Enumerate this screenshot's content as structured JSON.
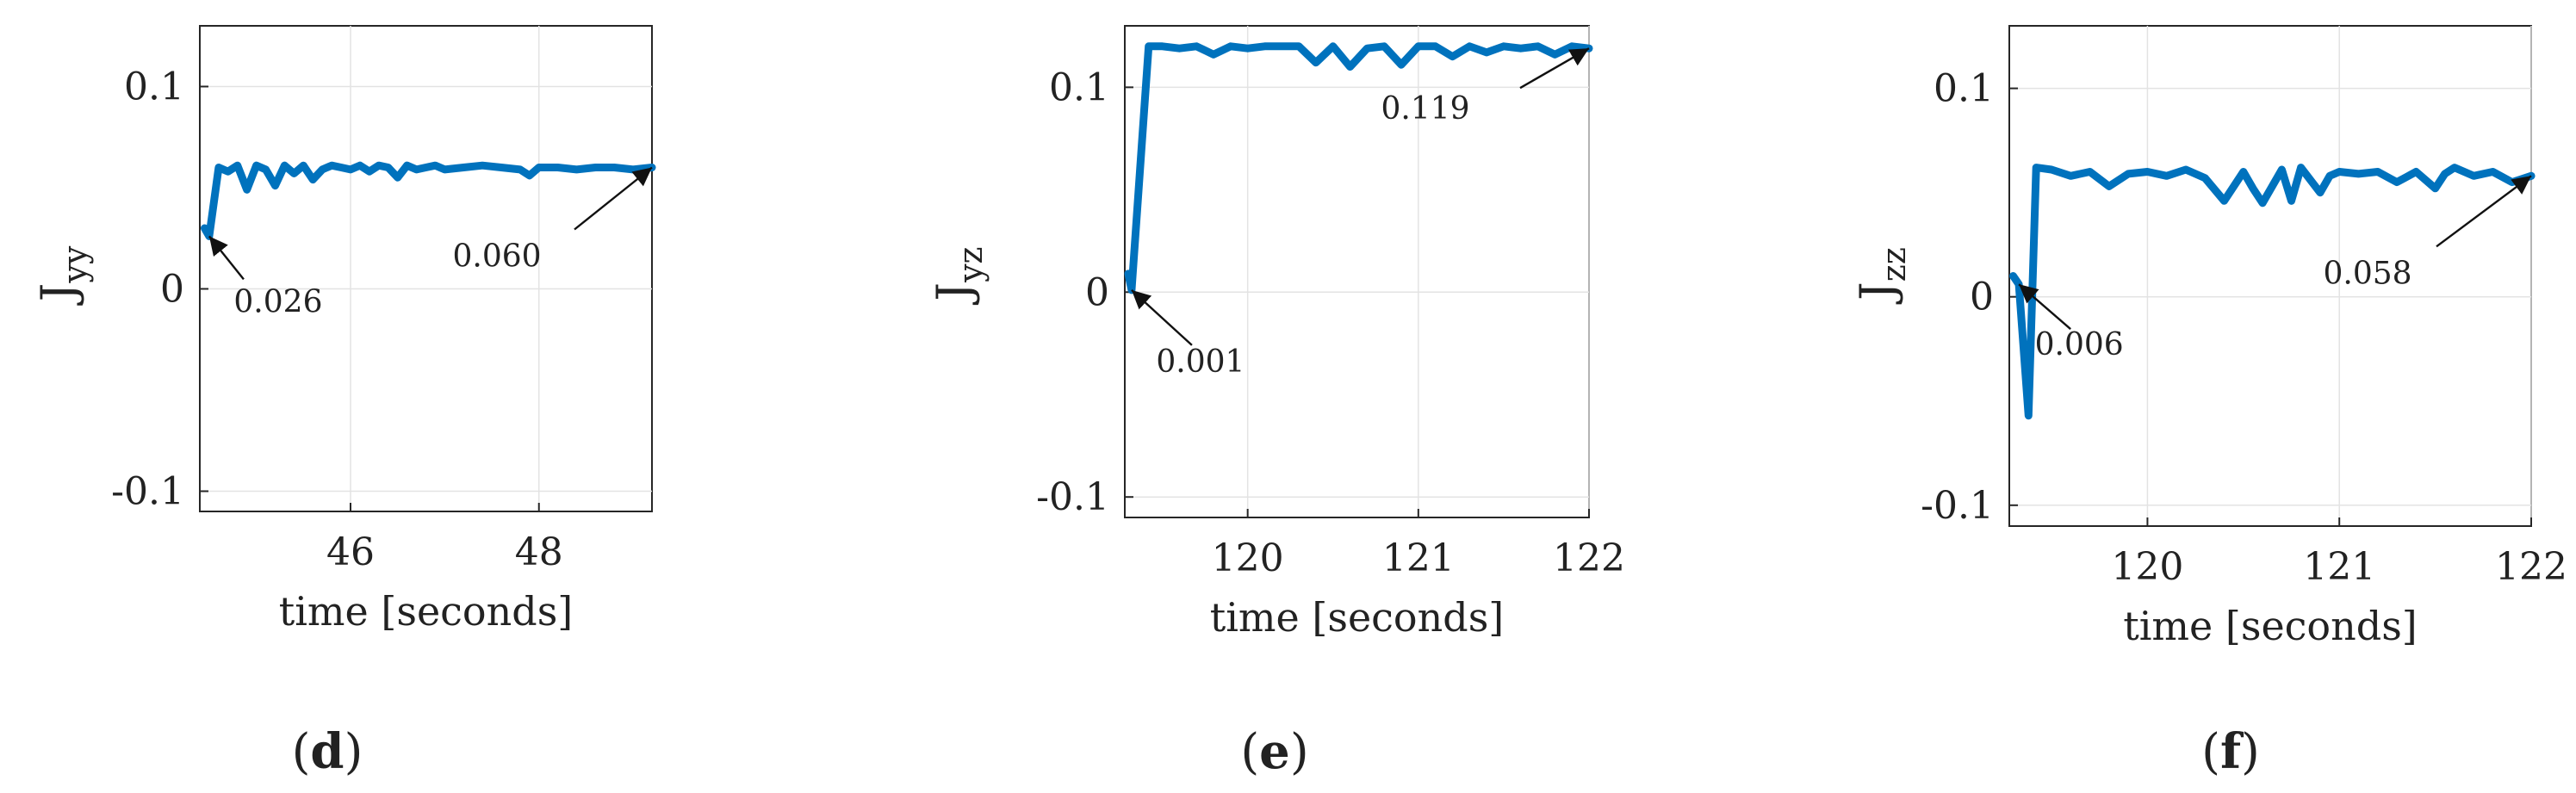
{
  "colors": {
    "series": "#0072BD",
    "axis": "#262626",
    "grid": "#e3e3e3",
    "text": "#222222"
  },
  "chart_data": [
    {
      "type": "line",
      "panel": "d",
      "ylabel": "J",
      "ylabel_sub": "yy",
      "xlabel": "time [seconds]",
      "xlim": [
        44.4,
        49.2
      ],
      "ylim": [
        -0.11,
        0.13
      ],
      "xticks": [
        46,
        48
      ],
      "xtick_labels": [
        "46",
        "48"
      ],
      "yticks": [
        -0.1,
        0,
        0.1
      ],
      "ytick_labels": [
        "-0.1",
        "0",
        "0.1"
      ],
      "grid": true,
      "series": [
        {
          "x": [
            44.45,
            44.5,
            44.6,
            44.7,
            44.8,
            44.9,
            45.0,
            45.1,
            45.2,
            45.3,
            45.4,
            45.5,
            45.6,
            45.7,
            45.8,
            45.9,
            46.0,
            46.1,
            46.2,
            46.3,
            46.4,
            46.5,
            46.6,
            46.7,
            46.8,
            46.9,
            47.0,
            47.2,
            47.4,
            47.6,
            47.8,
            47.9,
            48.0,
            48.2,
            48.4,
            48.6,
            48.8,
            49.0,
            49.2
          ],
          "y": [
            0.03,
            0.026,
            0.06,
            0.058,
            0.061,
            0.049,
            0.061,
            0.059,
            0.051,
            0.061,
            0.057,
            0.061,
            0.054,
            0.059,
            0.061,
            0.06,
            0.059,
            0.061,
            0.058,
            0.061,
            0.06,
            0.055,
            0.061,
            0.059,
            0.06,
            0.061,
            0.059,
            0.06,
            0.061,
            0.06,
            0.059,
            0.056,
            0.06,
            0.06,
            0.059,
            0.06,
            0.06,
            0.059,
            0.06
          ]
        }
      ],
      "annotations": [
        {
          "text": "0.026",
          "x": 44.5,
          "y": 0.026
        },
        {
          "text": "0.060",
          "x": 49.2,
          "y": 0.06
        }
      ]
    },
    {
      "type": "line",
      "panel": "e",
      "ylabel": "J",
      "ylabel_sub": "yz",
      "xlabel": "time [seconds]",
      "xlim": [
        119.28,
        122.0
      ],
      "ylim": [
        -0.11,
        0.13
      ],
      "xticks": [
        120,
        121,
        122
      ],
      "xtick_labels": [
        "120",
        "121",
        "122"
      ],
      "yticks": [
        -0.1,
        0,
        0.1
      ],
      "ytick_labels": [
        "-0.1",
        "0",
        "0.1"
      ],
      "grid": true,
      "series": [
        {
          "x": [
            119.3,
            119.32,
            119.42,
            119.5,
            119.6,
            119.7,
            119.8,
            119.9,
            120.0,
            120.1,
            120.2,
            120.3,
            120.4,
            120.5,
            120.6,
            120.7,
            120.8,
            120.9,
            121.0,
            121.1,
            121.2,
            121.3,
            121.4,
            121.5,
            121.6,
            121.7,
            121.8,
            121.9,
            122.0
          ],
          "y": [
            0.009,
            0.001,
            0.12,
            0.12,
            0.119,
            0.12,
            0.116,
            0.12,
            0.119,
            0.12,
            0.12,
            0.12,
            0.112,
            0.12,
            0.11,
            0.119,
            0.12,
            0.111,
            0.12,
            0.12,
            0.115,
            0.12,
            0.117,
            0.12,
            0.119,
            0.12,
            0.116,
            0.12,
            0.119
          ]
        }
      ],
      "annotations": [
        {
          "text": "0.001",
          "x": 119.32,
          "y": 0.001
        },
        {
          "text": "0.119",
          "x": 122.0,
          "y": 0.119
        }
      ]
    },
    {
      "type": "line",
      "panel": "f",
      "ylabel": "J",
      "ylabel_sub": "zz",
      "xlabel": "time [seconds]",
      "xlim": [
        119.28,
        122.0
      ],
      "ylim": [
        -0.11,
        0.13
      ],
      "xticks": [
        120,
        121,
        122
      ],
      "xtick_labels": [
        "120",
        "121",
        "122"
      ],
      "yticks": [
        -0.1,
        0,
        0.1
      ],
      "ytick_labels": [
        "-0.1",
        "0",
        "0.1"
      ],
      "grid": true,
      "series": [
        {
          "x": [
            119.3,
            119.33,
            119.38,
            119.42,
            119.5,
            119.6,
            119.7,
            119.8,
            119.9,
            120.0,
            120.1,
            120.2,
            120.3,
            120.4,
            120.5,
            120.55,
            120.6,
            120.7,
            120.75,
            120.8,
            120.9,
            120.95,
            121.0,
            121.1,
            121.2,
            121.3,
            121.4,
            121.5,
            121.55,
            121.6,
            121.7,
            121.8,
            121.9,
            122.0
          ],
          "y": [
            0.01,
            0.006,
            -0.057,
            0.062,
            0.061,
            0.058,
            0.06,
            0.053,
            0.059,
            0.06,
            0.058,
            0.061,
            0.057,
            0.046,
            0.06,
            0.052,
            0.045,
            0.061,
            0.046,
            0.062,
            0.05,
            0.058,
            0.06,
            0.059,
            0.06,
            0.055,
            0.06,
            0.052,
            0.059,
            0.062,
            0.058,
            0.06,
            0.055,
            0.058
          ]
        }
      ],
      "annotations": [
        {
          "text": "0.006",
          "x": 119.33,
          "y": 0.006
        },
        {
          "text": "0.058",
          "x": 122.0,
          "y": 0.058
        }
      ]
    }
  ]
}
